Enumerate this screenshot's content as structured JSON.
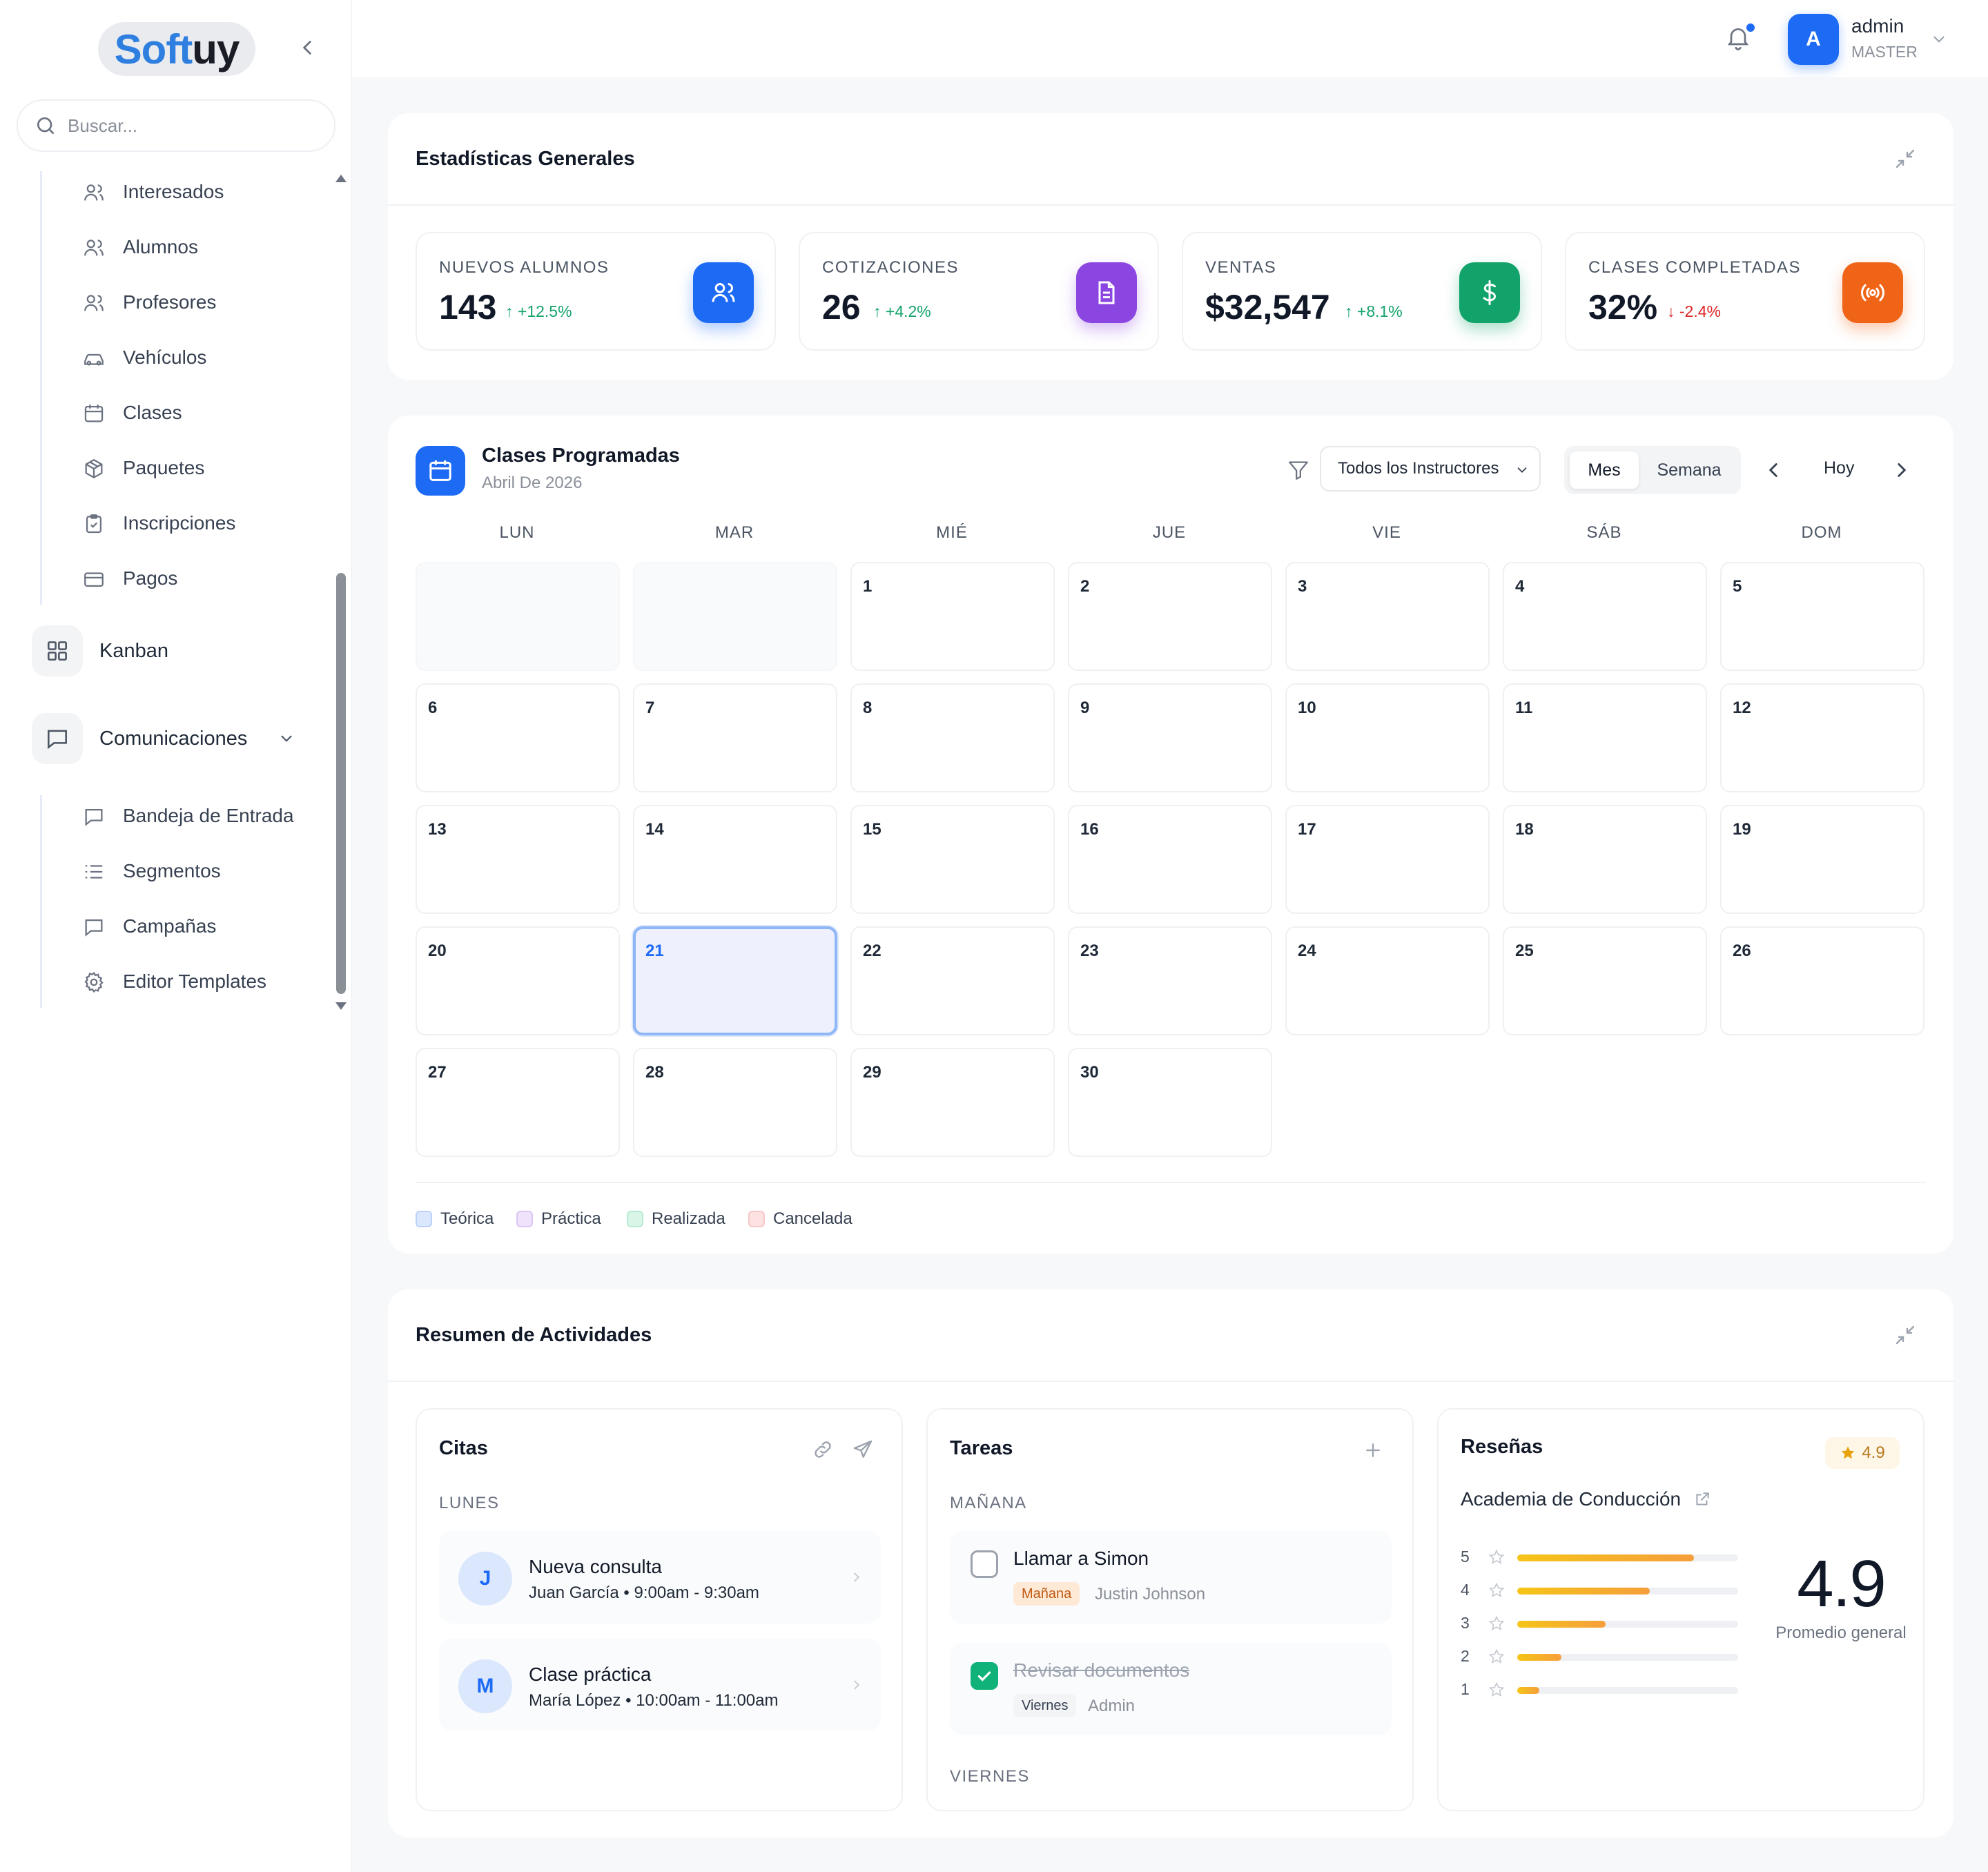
{
  "sidebar": {
    "logo_a": "Soft",
    "logo_b": "uy",
    "search_placeholder": "Buscar...",
    "group1": [
      {
        "label": "Interesados",
        "icon": "users-icon"
      },
      {
        "label": "Alumnos",
        "icon": "users-icon"
      },
      {
        "label": "Profesores",
        "icon": "users-icon"
      },
      {
        "label": "Vehículos",
        "icon": "car-icon"
      },
      {
        "label": "Clases",
        "icon": "calendar-icon"
      },
      {
        "label": "Paquetes",
        "icon": "package-icon"
      },
      {
        "label": "Inscripciones",
        "icon": "clipboard-check-icon"
      },
      {
        "label": "Pagos",
        "icon": "credit-card-icon"
      }
    ],
    "kanban": "Kanban",
    "comunicaciones": "Comunicaciones",
    "group2": [
      {
        "label": "Bandeja de Entrada",
        "icon": "message-square-icon"
      },
      {
        "label": "Segmentos",
        "icon": "list-icon"
      },
      {
        "label": "Campañas",
        "icon": "message-square-icon"
      },
      {
        "label": "Editor Templates",
        "icon": "gear-icon"
      }
    ]
  },
  "header": {
    "user_name": "admin",
    "user_role": "MASTER",
    "avatar_letter": "A"
  },
  "stats": {
    "title": "Estadísticas Generales",
    "items": [
      {
        "label": "NUEVOS ALUMNOS",
        "value": "143",
        "delta": "+12.5%",
        "trend": "up",
        "color": "#1d6af5",
        "icon": "users-icon"
      },
      {
        "label": "COTIZACIONES",
        "value": "26",
        "delta": "+4.2%",
        "trend": "up",
        "color": "#8b45e0",
        "icon": "file-text-icon"
      },
      {
        "label": "VENTAS",
        "value": "$32,547",
        "delta": "+8.1%",
        "trend": "up",
        "color": "#12a36a",
        "icon": "dollar-icon"
      },
      {
        "label": "CLASES COMPLETADAS",
        "value": "32%",
        "delta": "-2.4%",
        "trend": "down",
        "color": "#f06418",
        "icon": "broadcast-icon"
      }
    ]
  },
  "calendar": {
    "title": "Clases Programadas",
    "subtitle": "Abril De 2026",
    "instructor_filter": "Todos los Instructores",
    "view_month": "Mes",
    "view_week": "Semana",
    "today_label": "Hoy",
    "weekdays": [
      "LUN",
      "MAR",
      "MIÉ",
      "JUE",
      "VIE",
      "SÁB",
      "DOM"
    ],
    "days": [
      "1",
      "2",
      "3",
      "4",
      "5",
      "6",
      "7",
      "8",
      "9",
      "10",
      "11",
      "12",
      "13",
      "14",
      "15",
      "16",
      "17",
      "18",
      "19",
      "20",
      "21",
      "22",
      "23",
      "24",
      "25",
      "26",
      "27",
      "28",
      "29",
      "30"
    ],
    "today": "21",
    "legend": [
      {
        "label": "Teórica",
        "color": "#dbe7fc"
      },
      {
        "label": "Práctica",
        "color": "#efe3fb"
      },
      {
        "label": "Realizada",
        "color": "#d9f5e8"
      },
      {
        "label": "Cancelada",
        "color": "#fde2e2"
      }
    ]
  },
  "activity": {
    "title": "Resumen de Actividades",
    "citas": {
      "title": "Citas",
      "day_label": "LUNES",
      "items": [
        {
          "initial": "J",
          "title": "Nueva consulta",
          "detail": "Juan García • 9:00am - 9:30am"
        },
        {
          "initial": "M",
          "title": "Clase práctica",
          "detail": "María López • 10:00am - 11:00am"
        }
      ]
    },
    "tareas": {
      "title": "Tareas",
      "day1": "MAÑANA",
      "day2": "VIERNES",
      "items": [
        {
          "title": "Llamar a Simon",
          "tag": "Mañana",
          "who": "Justin Johnson",
          "done": false
        },
        {
          "title": "Revisar documentos",
          "tag": "Viernes",
          "who": "Admin",
          "done": true
        }
      ]
    },
    "resenas": {
      "title": "Reseñas",
      "rating": "4.9",
      "business": "Academia de Conducción",
      "big_score": "4.9",
      "caption": "Promedio general",
      "distribution": [
        {
          "stars": "5",
          "fraction": 0.8
        },
        {
          "stars": "4",
          "fraction": 0.6
        },
        {
          "stars": "3",
          "fraction": 0.4
        },
        {
          "stars": "2",
          "fraction": 0.2
        },
        {
          "stars": "1",
          "fraction": 0.1
        }
      ]
    }
  }
}
